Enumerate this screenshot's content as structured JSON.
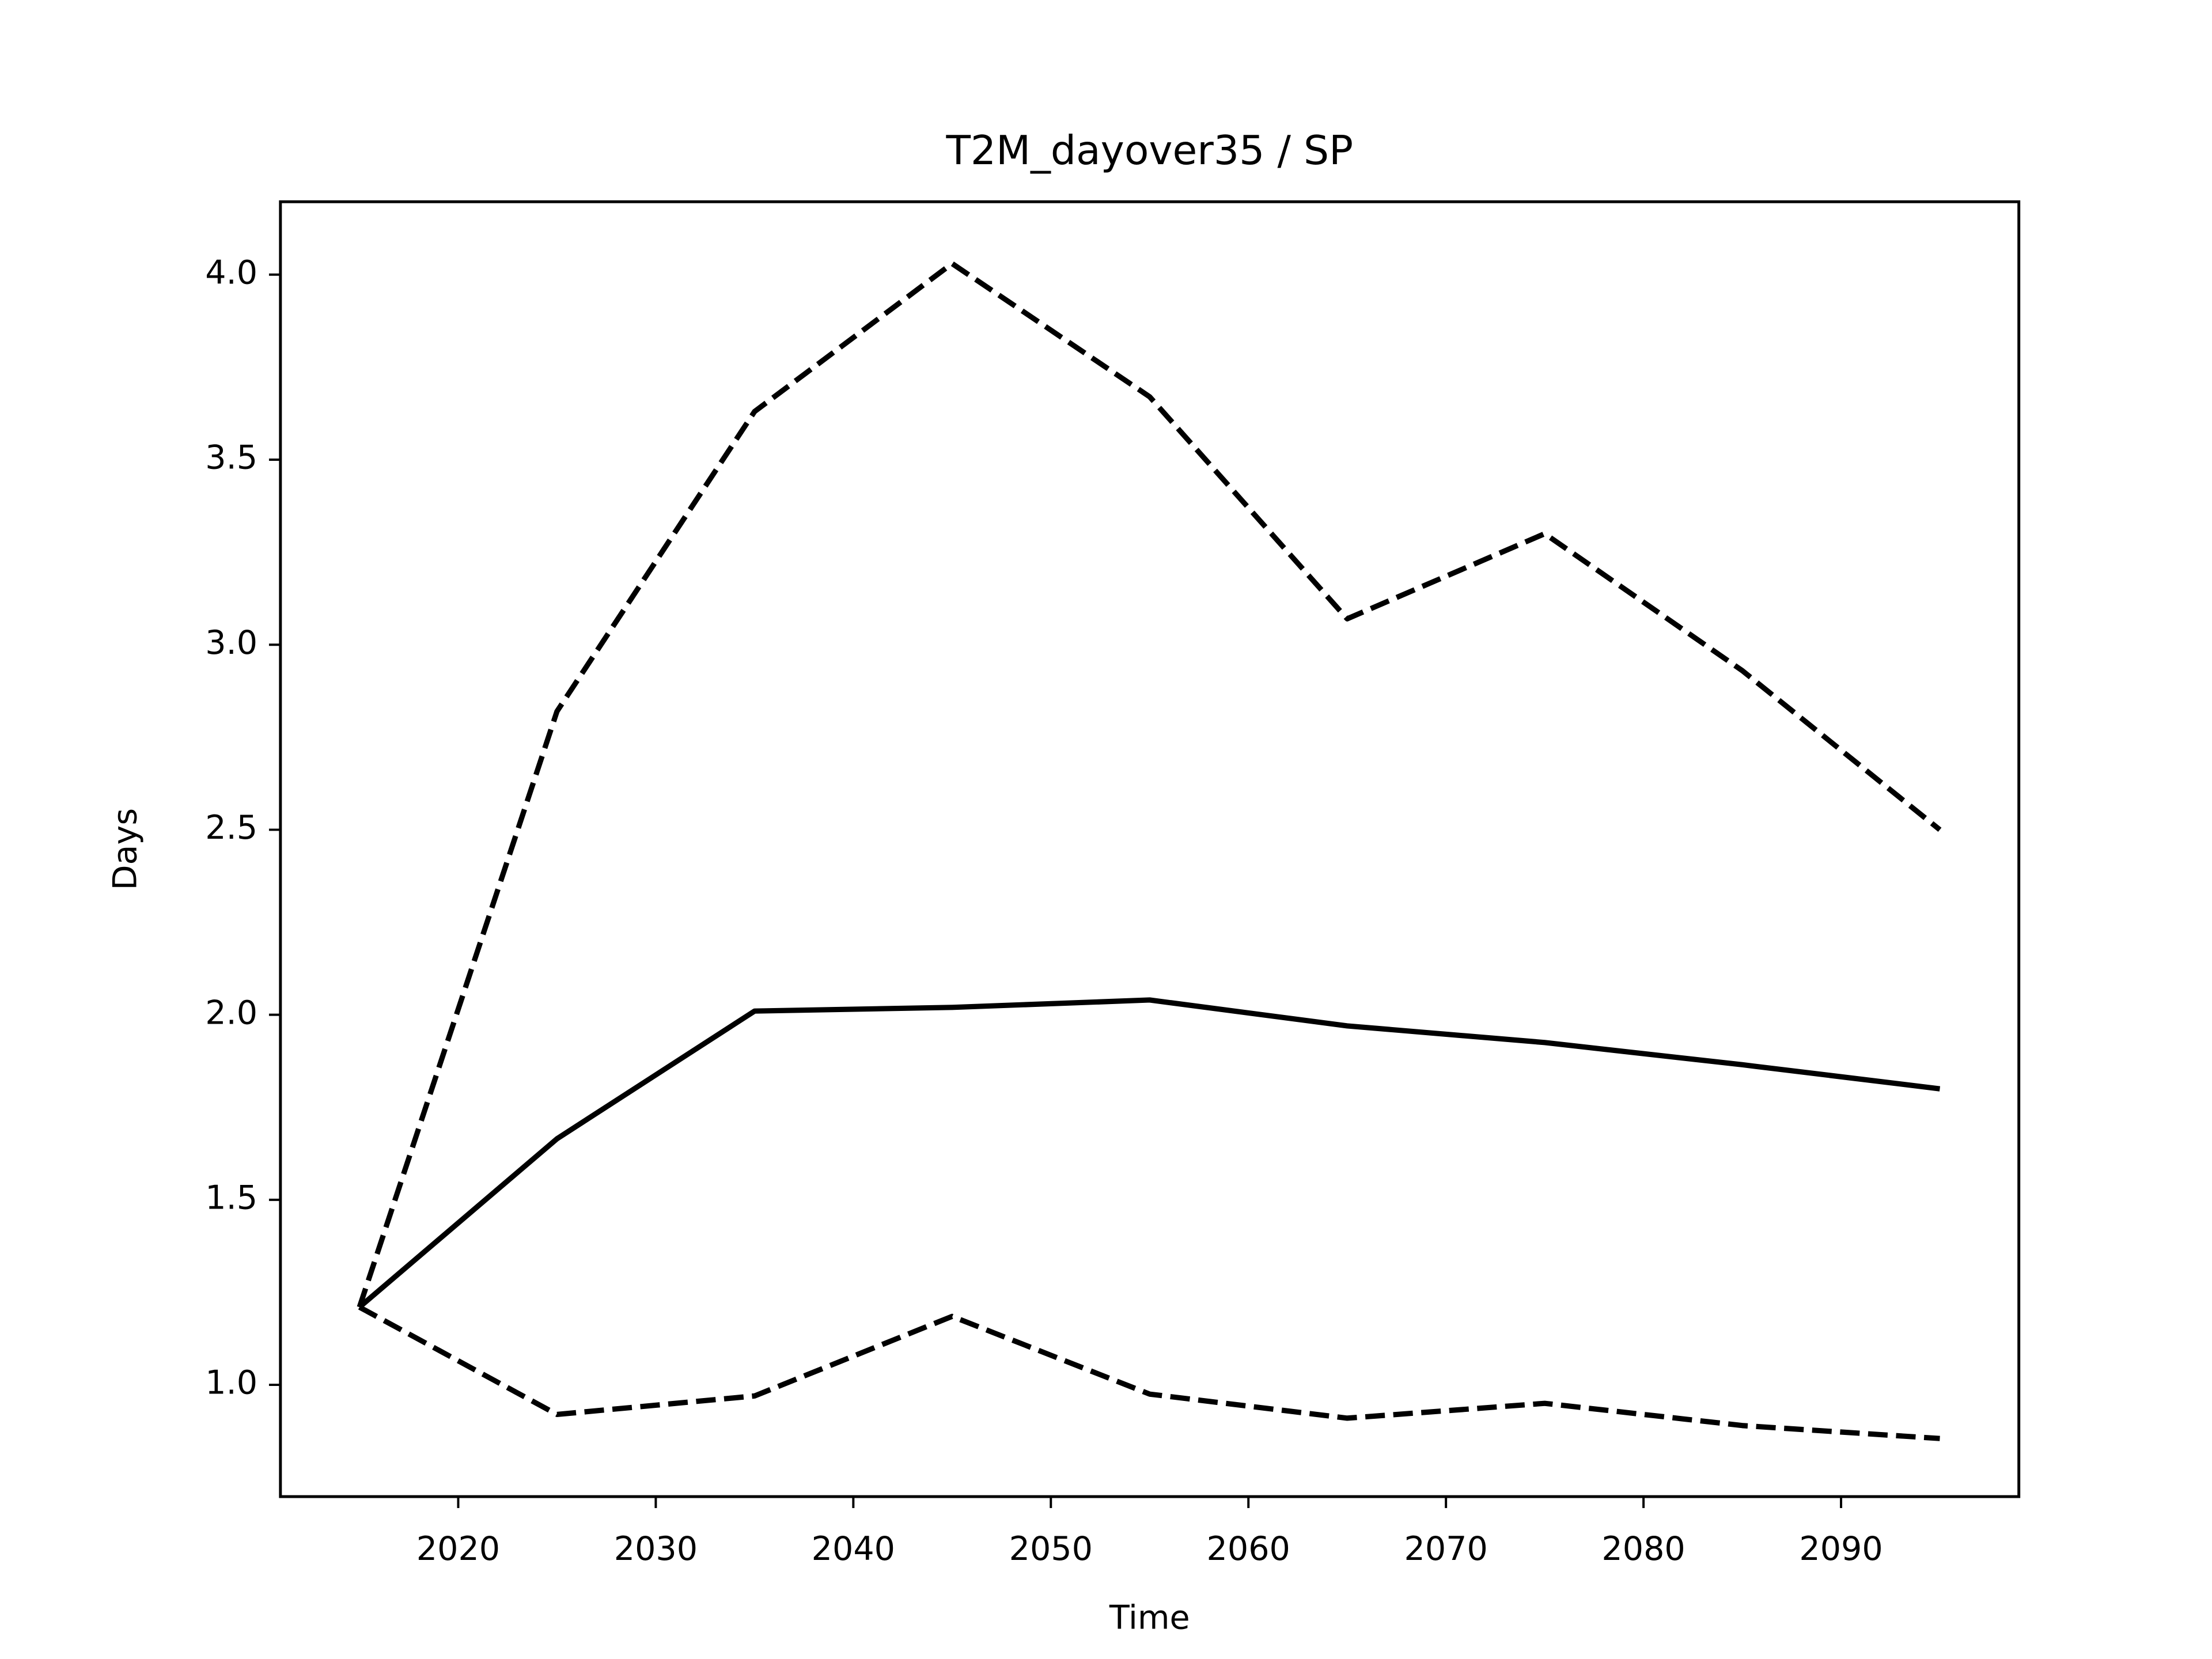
{
  "chart_data": {
    "type": "line",
    "title": "T2M_dayover35 / SP",
    "xlabel": "Time",
    "ylabel": "Days",
    "x": [
      2015,
      2025,
      2035,
      2045,
      2055,
      2065,
      2075,
      2085,
      2095
    ],
    "series": [
      {
        "color": "#000000",
        "linestyle": "solid",
        "values": [
          1.21,
          1.665,
          2.01,
          2.02,
          2.04,
          1.97,
          1.925,
          1.865,
          1.8
        ]
      },
      {
        "color": "#000000",
        "linestyle": "dashed",
        "values": [
          1.21,
          2.82,
          3.63,
          4.03,
          3.67,
          3.07,
          3.3,
          2.93,
          2.5
        ]
      },
      {
        "color": "#000000",
        "linestyle": "dashed",
        "values": [
          1.21,
          0.92,
          0.97,
          1.185,
          0.975,
          0.91,
          0.95,
          0.89,
          0.855
        ]
      }
    ],
    "xlim": [
      2011,
      2099
    ],
    "ylim": [
      0.698,
      4.197
    ],
    "xticks": [
      2020,
      2030,
      2040,
      2050,
      2060,
      2070,
      2080,
      2090
    ],
    "yticks": [
      {
        "value": 1,
        "label": "1.0"
      },
      {
        "value": 1.5,
        "label": "1.5"
      },
      {
        "value": 2,
        "label": "2.0"
      },
      {
        "value": 2.5,
        "label": "2.5"
      },
      {
        "value": 3,
        "label": "3.0"
      },
      {
        "value": 3.5,
        "label": "3.5"
      },
      {
        "value": 4,
        "label": "4.0"
      }
    ]
  }
}
